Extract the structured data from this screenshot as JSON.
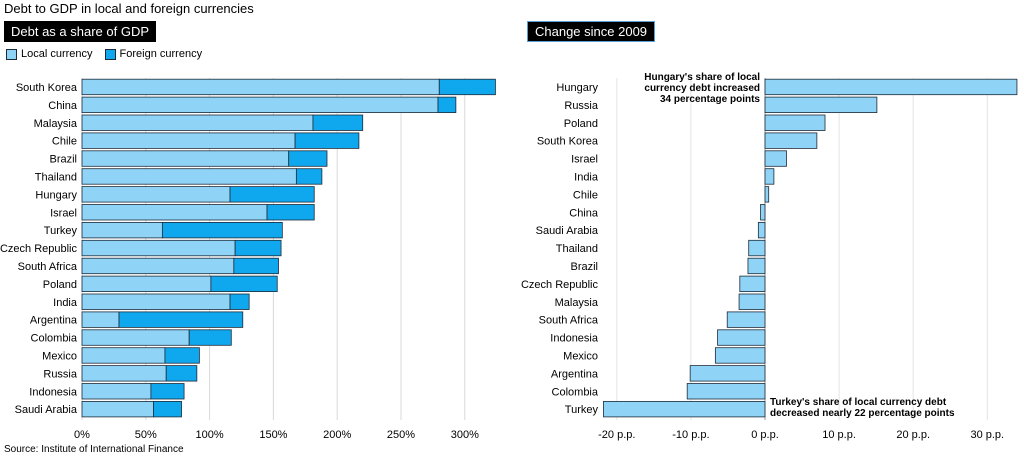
{
  "title": "Debt to GDP in local and foreign currencies",
  "source": "Source: Institute of International Finance",
  "colors": {
    "local": "#8fd3f7",
    "foreign": "#0fa8ef",
    "change": "#8fd3f7",
    "stroke": "#1d2b38"
  },
  "panels": {
    "left_label": "Debt as a share of GDP",
    "right_label": "Change since 2009"
  },
  "legend": {
    "local": "Local currency",
    "foreign": "Foreign currency"
  },
  "chart_data": [
    {
      "type": "bar",
      "orientation": "horizontal",
      "stacked": true,
      "title": "Debt as a share of GDP",
      "categories": [
        "South Korea",
        "China",
        "Malaysia",
        "Chile",
        "Brazil",
        "Thailand",
        "Hungary",
        "Israel",
        "Turkey",
        "Czech Republic",
        "South Africa",
        "Poland",
        "India",
        "Argentina",
        "Colombia",
        "Mexico",
        "Russia",
        "Indonesia",
        "Saudi Arabia"
      ],
      "series": [
        {
          "name": "Local currency",
          "values": [
            280,
            279,
            181,
            167,
            162,
            168,
            116,
            145,
            63,
            120,
            119,
            101,
            116,
            29,
            84,
            65,
            66,
            54,
            56
          ]
        },
        {
          "name": "Foreign currency",
          "values": [
            44,
            14,
            39,
            50,
            30,
            20,
            66,
            37,
            94,
            36,
            35,
            52,
            15,
            97,
            33,
            27,
            24,
            26,
            22
          ]
        }
      ],
      "xlim": [
        0,
        325
      ],
      "xticks": [
        0,
        50,
        100,
        150,
        200,
        250,
        300
      ],
      "xtick_labels": [
        "0%",
        "50%",
        "100%",
        "150%",
        "200%",
        "250%",
        "300%"
      ],
      "legend_position": "top-left"
    },
    {
      "type": "bar",
      "orientation": "horizontal",
      "title": "Change since 2009",
      "categories": [
        "Hungary",
        "Russia",
        "Poland",
        "South Korea",
        "Israel",
        "India",
        "Chile",
        "China",
        "Saudi Arabia",
        "Thailand",
        "Brazil",
        "Czech Republic",
        "Malaysia",
        "South Africa",
        "Indonesia",
        "Mexico",
        "Argentina",
        "Colombia",
        "Turkey"
      ],
      "values": [
        34,
        15.1,
        8.1,
        7.0,
        2.9,
        1.2,
        0.5,
        -0.6,
        -0.9,
        -2.2,
        -2.3,
        -3.4,
        -3.5,
        -5.1,
        -6.4,
        -6.7,
        -10.1,
        -10.5,
        -21.8
      ],
      "xlim": [
        -21.8,
        34
      ],
      "xticks": [
        -20,
        -10,
        0,
        10,
        20,
        30
      ],
      "xtick_labels": [
        "-20 p.p.",
        "-10 p.p.",
        "0 p.p.",
        "10 p.p.",
        "20 p.p.",
        "30 p.p."
      ],
      "annotations": [
        {
          "category": "Hungary",
          "lines": [
            "Hungary's share of local",
            "currency debt increased",
            "34 percentage points"
          ]
        },
        {
          "category": "Turkey",
          "lines": [
            "Turkey's share of local currency debt",
            "decreased nearly 22 percentage points"
          ]
        }
      ]
    }
  ]
}
